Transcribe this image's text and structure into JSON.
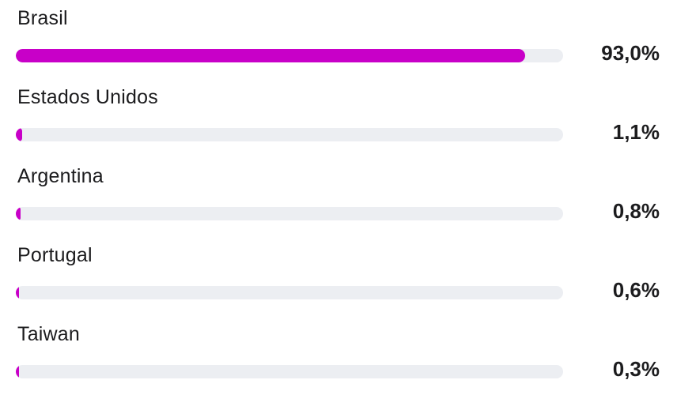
{
  "accent_color": "#c800c8",
  "countries": [
    {
      "name": "Brasil",
      "percent_label": "93,0%",
      "percent": 93.0
    },
    {
      "name": "Estados Unidos",
      "percent_label": "1,1%",
      "percent": 1.1
    },
    {
      "name": "Argentina",
      "percent_label": "0,8%",
      "percent": 0.8
    },
    {
      "name": "Portugal",
      "percent_label": "0,6%",
      "percent": 0.6
    },
    {
      "name": "Taiwan",
      "percent_label": "0,3%",
      "percent": 0.3
    }
  ]
}
